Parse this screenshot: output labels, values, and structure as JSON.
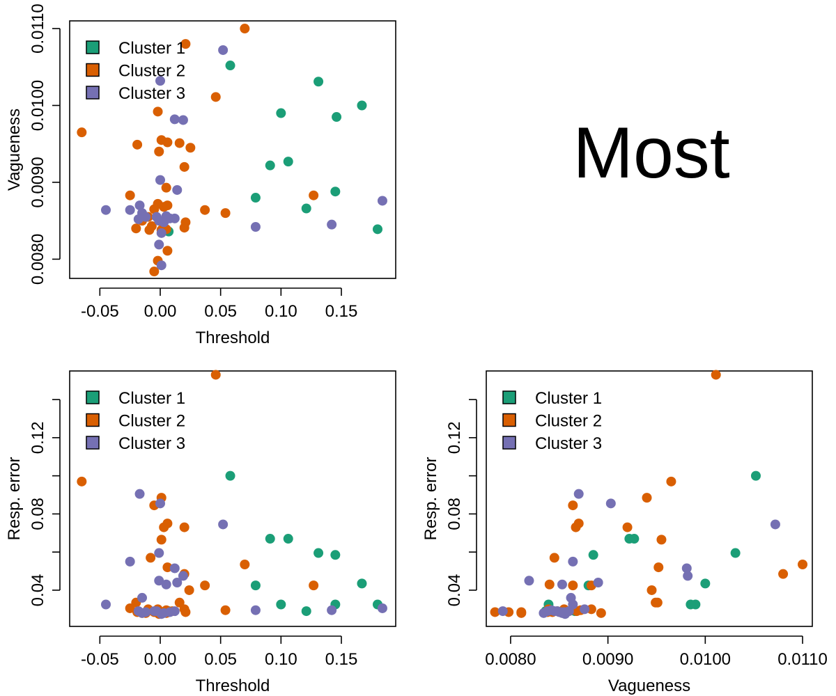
{
  "page_title": "Most",
  "colors": {
    "cluster1": "#1b9e77",
    "cluster2": "#d95f02",
    "cluster3": "#7570b3"
  },
  "legend": [
    {
      "label": "Cluster 1",
      "color": "#1b9e77"
    },
    {
      "label": "Cluster 2",
      "color": "#d95f02"
    },
    {
      "label": "Cluster 3",
      "color": "#7570b3"
    }
  ],
  "chart_data": [
    {
      "type": "scatter",
      "xlabel": "Threshold",
      "ylabel": "Vagueness",
      "xlim": [
        -0.075,
        0.195
      ],
      "ylim": [
        0.00775,
        0.0111
      ],
      "xticks": [
        -0.05,
        0.0,
        0.05,
        0.1,
        0.15
      ],
      "xtick_labels": [
        "-0.05",
        "0.00",
        "0.05",
        "0.10",
        "0.15"
      ],
      "yticks": [
        0.008,
        0.009,
        0.01,
        0.011
      ],
      "ytick_labels": [
        "0.0080",
        "0.0090",
        "0.0100",
        "0.0110"
      ],
      "legend_position": "top-left",
      "series": [
        {
          "name": "Cluster 1",
          "color": "#1b9e77",
          "points": [
            [
              0.058,
              0.01052
            ],
            [
              0.131,
              0.01031
            ],
            [
              0.167,
              0.01
            ],
            [
              0.1,
              0.0099
            ],
            [
              0.146,
              0.00985
            ],
            [
              0.106,
              0.00927
            ],
            [
              0.091,
              0.00922
            ],
            [
              0.145,
              0.00888
            ],
            [
              0.079,
              0.0088
            ],
            [
              0.121,
              0.00866
            ],
            [
              0.18,
              0.00839
            ],
            [
              0.007,
              0.00836
            ]
          ]
        },
        {
          "name": "Cluster 2",
          "color": "#d95f02",
          "points": [
            [
              0.07,
              0.011
            ],
            [
              0.021,
              0.0108
            ],
            [
              0.046,
              0.01011
            ],
            [
              -0.065,
              0.00965
            ],
            [
              -0.002,
              0.00992
            ],
            [
              0.001,
              0.00955
            ],
            [
              0.006,
              0.00952
            ],
            [
              -0.019,
              0.00949
            ],
            [
              0.016,
              0.00951
            ],
            [
              0.025,
              0.00945
            ],
            [
              -0.001,
              0.0094
            ],
            [
              0.02,
              0.0092
            ],
            [
              -0.025,
              0.00883
            ],
            [
              0.127,
              0.00883
            ],
            [
              0.005,
              0.00893
            ],
            [
              -0.002,
              0.00872
            ],
            [
              0.003,
              0.00868
            ],
            [
              0.006,
              0.0087
            ],
            [
              0.037,
              0.00864
            ],
            [
              0.054,
              0.0086
            ],
            [
              -0.005,
              0.00865
            ],
            [
              -0.01,
              0.00855
            ],
            [
              -0.015,
              0.0085
            ],
            [
              0.021,
              0.00848
            ],
            [
              -0.007,
              0.00843
            ],
            [
              0.02,
              0.00841
            ],
            [
              -0.02,
              0.0084
            ],
            [
              -0.009,
              0.00838
            ],
            [
              0.001,
              0.00838
            ],
            [
              0.005,
              0.00839
            ],
            [
              0.006,
              0.00811
            ],
            [
              -0.002,
              0.00798
            ],
            [
              -0.005,
              0.00784
            ]
          ]
        },
        {
          "name": "Cluster 3",
          "color": "#7570b3",
          "points": [
            [
              0.052,
              0.01072
            ],
            [
              0.0,
              0.01032
            ],
            [
              0.012,
              0.00982
            ],
            [
              0.019,
              0.00981
            ],
            [
              0.0,
              0.00903
            ],
            [
              0.014,
              0.0089
            ],
            [
              0.184,
              0.00876
            ],
            [
              -0.045,
              0.00864
            ],
            [
              -0.025,
              0.00864
            ],
            [
              -0.017,
              0.0087
            ],
            [
              -0.015,
              0.0086
            ],
            [
              -0.012,
              0.00855
            ],
            [
              -0.018,
              0.00852
            ],
            [
              -0.003,
              0.00855
            ],
            [
              0.005,
              0.00856
            ],
            [
              0.008,
              0.00853
            ],
            [
              0.012,
              0.00853
            ],
            [
              0.003,
              0.00848
            ],
            [
              -0.001,
              0.0085
            ],
            [
              0.079,
              0.00842
            ],
            [
              0.142,
              0.00845
            ],
            [
              0.001,
              0.00834
            ],
            [
              -0.001,
              0.00819
            ],
            [
              0.001,
              0.00792
            ]
          ]
        }
      ]
    },
    {
      "type": "scatter",
      "xlabel": "Threshold",
      "ylabel": "Resp. error",
      "xlim": [
        -0.075,
        0.195
      ],
      "ylim": [
        0.021,
        0.155
      ],
      "xticks": [
        -0.05,
        0.0,
        0.05,
        0.1,
        0.15
      ],
      "xtick_labels": [
        "-0.05",
        "0.00",
        "0.05",
        "0.10",
        "0.15"
      ],
      "yticks": [
        0.04,
        0.06,
        0.08,
        0.1,
        0.12,
        0.14
      ],
      "ytick_labels": [
        "0.04",
        "",
        "0.08",
        "",
        "0.12",
        ""
      ],
      "legend_position": "top-left",
      "series": [
        {
          "name": "Cluster 1",
          "color": "#1b9e77",
          "points": [
            [
              0.058,
              0.1
            ],
            [
              0.091,
              0.067
            ],
            [
              0.106,
              0.067
            ],
            [
              0.131,
              0.0595
            ],
            [
              0.145,
              0.0585
            ],
            [
              0.079,
              0.0425
            ],
            [
              0.167,
              0.0435
            ],
            [
              0.1,
              0.0325
            ],
            [
              0.145,
              0.0325
            ],
            [
              0.18,
              0.0325
            ],
            [
              0.121,
              0.029
            ],
            [
              0.007,
              0.029
            ]
          ]
        },
        {
          "name": "Cluster 2",
          "color": "#d95f02",
          "points": [
            [
              0.046,
              0.153
            ],
            [
              -0.065,
              0.097
            ],
            [
              0.001,
              0.0885
            ],
            [
              -0.005,
              0.0845
            ],
            [
              0.006,
              0.075
            ],
            [
              0.003,
              0.073
            ],
            [
              0.02,
              0.073
            ],
            [
              0.001,
              0.0665
            ],
            [
              -0.008,
              0.057
            ],
            [
              0.07,
              0.0535
            ],
            [
              0.006,
              0.052
            ],
            [
              0.02,
              0.0485
            ],
            [
              0.037,
              0.0425
            ],
            [
              0.127,
              0.0425
            ],
            [
              0.024,
              0.04
            ],
            [
              0.016,
              0.0335
            ],
            [
              -0.02,
              0.0335
            ],
            [
              -0.025,
              0.0305
            ],
            [
              -0.01,
              0.03
            ],
            [
              -0.002,
              0.03
            ],
            [
              0.005,
              0.0295
            ],
            [
              0.01,
              0.029
            ],
            [
              0.02,
              0.03
            ],
            [
              0.054,
              0.0295
            ],
            [
              -0.019,
              0.0285
            ],
            [
              -0.015,
              0.028
            ],
            [
              -0.005,
              0.0285
            ],
            [
              0.0,
              0.0285
            ],
            [
              0.007,
              0.0285
            ],
            [
              0.021,
              0.0285
            ],
            [
              -0.001,
              0.0275
            ],
            [
              -0.012,
              0.028
            ],
            [
              0.005,
              0.028
            ]
          ]
        },
        {
          "name": "Cluster 3",
          "color": "#7570b3",
          "points": [
            [
              -0.017,
              0.0905
            ],
            [
              0.0,
              0.0855
            ],
            [
              0.052,
              0.0745
            ],
            [
              -0.001,
              0.0595
            ],
            [
              -0.025,
              0.055
            ],
            [
              0.012,
              0.0515
            ],
            [
              0.019,
              0.0475
            ],
            [
              -0.001,
              0.045
            ],
            [
              0.014,
              0.044
            ],
            [
              0.005,
              0.043
            ],
            [
              -0.015,
              0.036
            ],
            [
              -0.045,
              0.0325
            ],
            [
              0.184,
              0.0305
            ],
            [
              0.079,
              0.0295
            ],
            [
              0.142,
              0.0295
            ],
            [
              -0.018,
              0.029
            ],
            [
              -0.012,
              0.0285
            ],
            [
              0.003,
              0.028
            ],
            [
              0.008,
              0.0285
            ],
            [
              0.012,
              0.029
            ],
            [
              -0.003,
              0.029
            ],
            [
              -0.015,
              0.028
            ],
            [
              0.001,
              0.0275
            ],
            [
              -0.005,
              0.029
            ]
          ]
        }
      ]
    },
    {
      "type": "scatter",
      "xlabel": "Vagueness",
      "ylabel": "Resp. error",
      "xlim": [
        0.00775,
        0.0111
      ],
      "ylim": [
        0.021,
        0.155
      ],
      "xticks": [
        0.008,
        0.009,
        0.01,
        0.011
      ],
      "xtick_labels": [
        "0.0080",
        "0.0090",
        "0.0100",
        "0.0110"
      ],
      "yticks": [
        0.04,
        0.06,
        0.08,
        0.1,
        0.12,
        0.14
      ],
      "ytick_labels": [
        "0.04",
        "",
        "0.08",
        "",
        "0.12",
        ""
      ],
      "legend_position": "top-left",
      "series": [
        {
          "name": "Cluster 1",
          "color": "#1b9e77",
          "points": [
            [
              0.01052,
              0.1
            ],
            [
              0.00922,
              0.067
            ],
            [
              0.00927,
              0.067
            ],
            [
              0.01031,
              0.0595
            ],
            [
              0.00885,
              0.0585
            ],
            [
              0.0088,
              0.0425
            ],
            [
              0.01,
              0.0435
            ],
            [
              0.00985,
              0.0325
            ],
            [
              0.0099,
              0.0325
            ],
            [
              0.00839,
              0.0325
            ],
            [
              0.00866,
              0.029
            ],
            [
              0.00836,
              0.029
            ]
          ]
        },
        {
          "name": "Cluster 2",
          "color": "#d95f02",
          "points": [
            [
              0.01011,
              0.153
            ],
            [
              0.00965,
              0.097
            ],
            [
              0.0094,
              0.0885
            ],
            [
              0.00864,
              0.0845
            ],
            [
              0.0087,
              0.075
            ],
            [
              0.00867,
              0.073
            ],
            [
              0.0092,
              0.073
            ],
            [
              0.00955,
              0.0665
            ],
            [
              0.00845,
              0.057
            ],
            [
              0.011,
              0.0535
            ],
            [
              0.00952,
              0.052
            ],
            [
              0.0108,
              0.0485
            ],
            [
              0.00864,
              0.0425
            ],
            [
              0.00883,
              0.0425
            ],
            [
              0.00945,
              0.04
            ],
            [
              0.00949,
              0.0335
            ],
            [
              0.00951,
              0.0335
            ],
            [
              0.0084,
              0.043
            ],
            [
              0.00872,
              0.0295
            ],
            [
              0.00883,
              0.03
            ],
            [
              0.00893,
              0.028
            ],
            [
              0.0086,
              0.029
            ],
            [
              0.00855,
              0.03
            ],
            [
              0.00848,
              0.029
            ],
            [
              0.00843,
              0.0285
            ],
            [
              0.00838,
              0.0285
            ],
            [
              0.00784,
              0.0285
            ],
            [
              0.00798,
              0.0285
            ],
            [
              0.00811,
              0.028
            ],
            [
              0.00811,
              0.0285
            ],
            [
              0.00841,
              0.029
            ],
            [
              0.00868,
              0.029
            ],
            [
              0.00839,
              0.03
            ]
          ]
        },
        {
          "name": "Cluster 3",
          "color": "#7570b3",
          "points": [
            [
              0.0087,
              0.0905
            ],
            [
              0.00903,
              0.0855
            ],
            [
              0.01072,
              0.0745
            ],
            [
              0.00981,
              0.0515
            ],
            [
              0.00982,
              0.0475
            ],
            [
              0.00864,
              0.055
            ],
            [
              0.00819,
              0.045
            ],
            [
              0.0089,
              0.044
            ],
            [
              0.00853,
              0.043
            ],
            [
              0.00862,
              0.036
            ],
            [
              0.00864,
              0.0325
            ],
            [
              0.00876,
              0.03
            ],
            [
              0.00842,
              0.0295
            ],
            [
              0.00845,
              0.029
            ],
            [
              0.00852,
              0.0285
            ],
            [
              0.00855,
              0.0285
            ],
            [
              0.00834,
              0.028
            ],
            [
              0.00848,
              0.029
            ],
            [
              0.0085,
              0.0285
            ],
            [
              0.00792,
              0.029
            ],
            [
              0.00856,
              0.0275
            ],
            [
              0.00853,
              0.028
            ],
            [
              0.00838,
              0.029
            ],
            [
              0.0086,
              0.029
            ]
          ]
        }
      ]
    }
  ]
}
